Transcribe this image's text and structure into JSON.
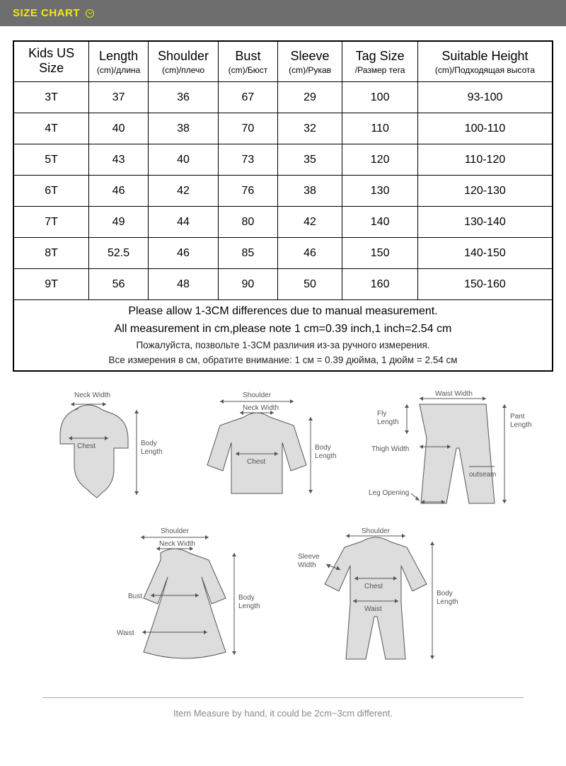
{
  "header": {
    "title": "SIZE CHART"
  },
  "columns": [
    {
      "main": "Kids US Size",
      "sub": ""
    },
    {
      "main": "Length",
      "sub": "(cm)/длина"
    },
    {
      "main": "Shoulder",
      "sub": "(cm)/плечо"
    },
    {
      "main": "Bust",
      "sub": "(cm)/Бюст"
    },
    {
      "main": "Sleeve",
      "sub": "(cm)/Рукав"
    },
    {
      "main": "Tag Size",
      "sub": "/Размер тега"
    },
    {
      "main": "Suitable Height",
      "sub": "(cm)/Подходящая высота"
    }
  ],
  "rows": [
    [
      "3T",
      "37",
      "36",
      "67",
      "29",
      "100",
      "93-100"
    ],
    [
      "4T",
      "40",
      "38",
      "70",
      "32",
      "110",
      "100-110"
    ],
    [
      "5T",
      "43",
      "40",
      "73",
      "35",
      "120",
      "110-120"
    ],
    [
      "6T",
      "46",
      "42",
      "76",
      "38",
      "130",
      "120-130"
    ],
    [
      "7T",
      "49",
      "44",
      "80",
      "42",
      "140",
      "130-140"
    ],
    [
      "8T",
      "52.5",
      "46",
      "85",
      "46",
      "150",
      "140-150"
    ],
    [
      "9T",
      "56",
      "48",
      "90",
      "50",
      "160",
      "150-160"
    ]
  ],
  "notes": {
    "line1": "Please allow 1-3CM differences due to manual measurement.",
    "line2": "All measurement in cm,please note 1 cm=0.39 inch,1 inch=2.54 cm",
    "line3_ru": "Пожалуйста, позвольте 1-3СМ различия из-за ручного измерения.",
    "line4_ru": "Все измерения в см, обратите внимание: 1 см = 0.39 дюйма, 1 дюйм = 2.54 см"
  },
  "diagrams": {
    "labels": {
      "neck_width": "Neck Width",
      "shoulder": "Shoulder",
      "chest": "Chest",
      "body_length": "Body\nLength",
      "waist_width": "Waist Width",
      "fly_length": "Fly\nLength",
      "pant_length": "Pant\nLength",
      "thigh_width": "Thigh Width",
      "leg_opening": "Leg Opening",
      "outseam": "outseam",
      "bust": "Bust",
      "waist": "Waist",
      "sleeve_width": "Sleeve\nWidth"
    }
  },
  "footnote": "Item Measure by hand, it could be 2cm~3cm different.",
  "style": {
    "header_bg": "#6e6e6e",
    "header_text_color": "#f2e711",
    "border_color": "#000000",
    "diagram_stroke": "#555555",
    "diagram_fill": "#dddddd",
    "footnote_color": "#888888"
  }
}
